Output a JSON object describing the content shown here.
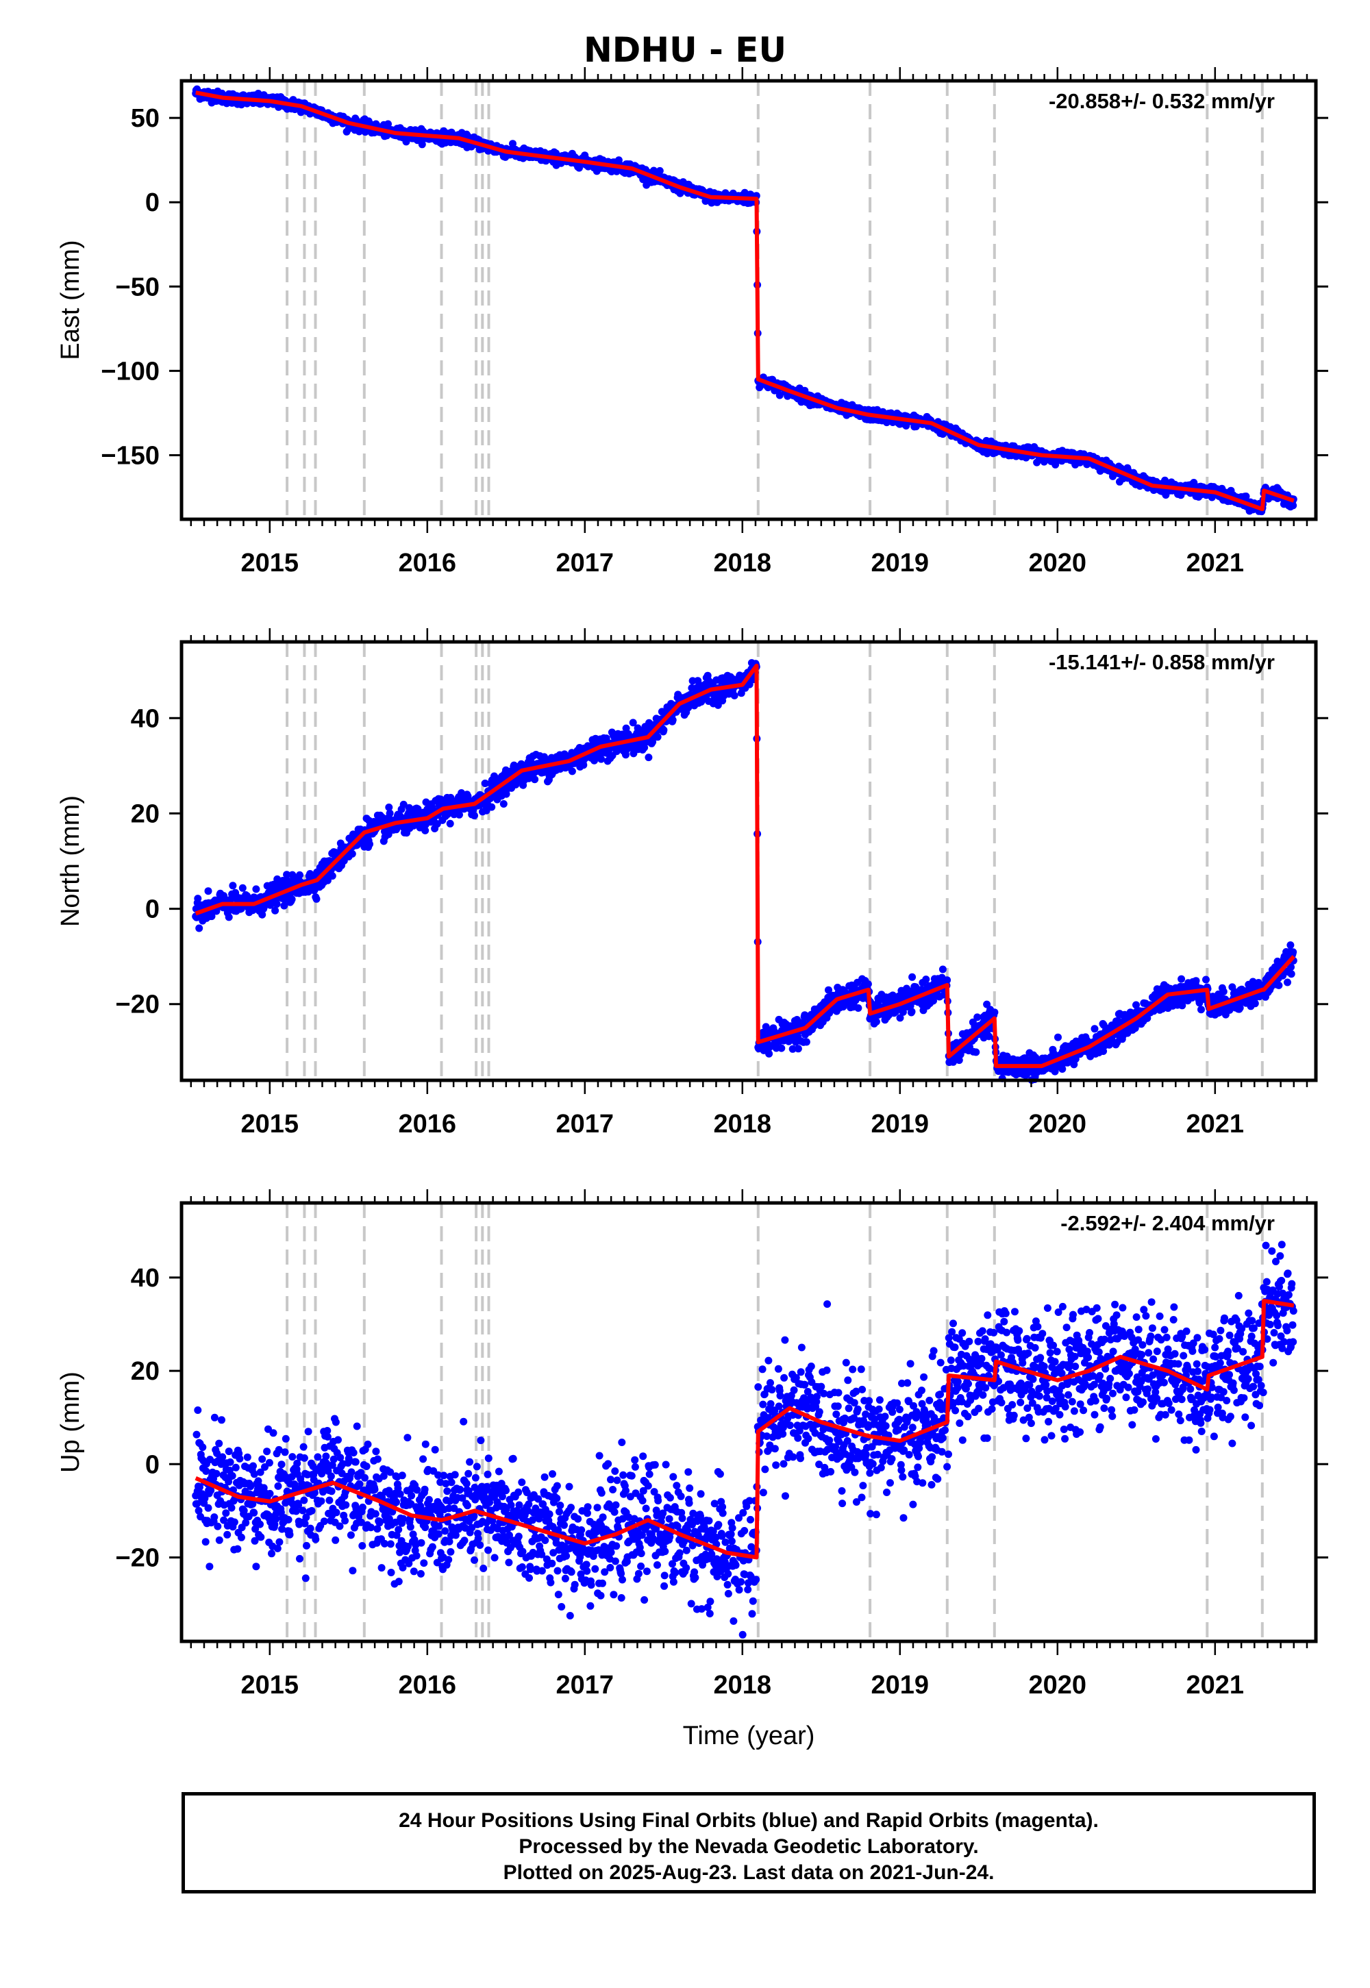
{
  "title": "NDHU - EU",
  "footer": {
    "line1": "24 Hour Positions Using Final Orbits (blue) and Rapid Orbits (magenta).",
    "line2": "Processed by the Nevada Geodetic Laboratory.",
    "line3": "Plotted on 2025-Aug-23. Last data on 2021-Jun-24."
  },
  "colors": {
    "data_points": "#0000ff",
    "model_line": "#ff0000",
    "event_lines": "#c8c8c8",
    "frame": "#000000"
  },
  "chart_data": [
    {
      "type": "scatter",
      "ylabel": "East (mm)",
      "xlabel": "",
      "rate_label": "-20.858+/- 0.532 mm/yr",
      "xlim": [
        2014.44,
        2021.64
      ],
      "ylim": [
        -188,
        72
      ],
      "yticks": [
        50,
        0,
        -50,
        -100,
        -150
      ],
      "xticks": [
        2015,
        2016,
        2017,
        2018,
        2019,
        2020,
        2021
      ],
      "event_lines": [
        2015.11,
        2015.22,
        2015.29,
        2015.6,
        2016.09,
        2016.31,
        2016.35,
        2016.39,
        2018.1,
        2018.81,
        2019.3,
        2019.6,
        2020.95,
        2021.3
      ],
      "model": [
        [
          2014.53,
          65
        ],
        [
          2014.7,
          62
        ],
        [
          2015.0,
          60
        ],
        [
          2015.2,
          57
        ],
        [
          2015.5,
          47
        ],
        [
          2015.8,
          41
        ],
        [
          2016.2,
          38
        ],
        [
          2016.5,
          30
        ],
        [
          2017.0,
          24
        ],
        [
          2017.3,
          20
        ],
        [
          2017.6,
          9
        ],
        [
          2017.8,
          3
        ],
        [
          2018.09,
          2
        ],
        [
          2018.1,
          -105
        ],
        [
          2018.3,
          -112
        ],
        [
          2018.6,
          -122
        ],
        [
          2018.8,
          -126
        ],
        [
          2019.2,
          -131
        ],
        [
          2019.5,
          -144
        ],
        [
          2019.9,
          -150
        ],
        [
          2020.2,
          -152
        ],
        [
          2020.6,
          -168
        ],
        [
          2021.0,
          -172
        ],
        [
          2021.3,
          -182
        ],
        [
          2021.31,
          -171
        ],
        [
          2021.5,
          -177
        ]
      ],
      "points_desc": "daily positions along model with noise ~2 mm"
    },
    {
      "type": "scatter",
      "ylabel": "North (mm)",
      "xlabel": "",
      "rate_label": "-15.141+/- 0.858 mm/yr",
      "xlim": [
        2014.44,
        2021.64
      ],
      "ylim": [
        -36,
        56
      ],
      "yticks": [
        40,
        20,
        0,
        -20
      ],
      "xticks": [
        2015,
        2016,
        2017,
        2018,
        2019,
        2020,
        2021
      ],
      "event_lines": [
        2015.11,
        2015.22,
        2015.29,
        2015.6,
        2016.09,
        2016.31,
        2016.35,
        2016.39,
        2018.1,
        2018.81,
        2019.3,
        2019.6,
        2020.95,
        2021.3
      ],
      "model": [
        [
          2014.53,
          -1
        ],
        [
          2014.7,
          1
        ],
        [
          2014.9,
          1
        ],
        [
          2015.2,
          5
        ],
        [
          2015.3,
          6
        ],
        [
          2015.6,
          16
        ],
        [
          2015.8,
          18
        ],
        [
          2016.0,
          19
        ],
        [
          2016.1,
          21
        ],
        [
          2016.3,
          22
        ],
        [
          2016.6,
          29
        ],
        [
          2016.9,
          31
        ],
        [
          2017.1,
          34
        ],
        [
          2017.4,
          36
        ],
        [
          2017.6,
          43
        ],
        [
          2017.8,
          46
        ],
        [
          2018.0,
          47
        ],
        [
          2018.09,
          51
        ],
        [
          2018.1,
          -28
        ],
        [
          2018.4,
          -25
        ],
        [
          2018.6,
          -19
        ],
        [
          2018.8,
          -17
        ],
        [
          2018.81,
          -22
        ],
        [
          2019.0,
          -20
        ],
        [
          2019.3,
          -16
        ],
        [
          2019.31,
          -31
        ],
        [
          2019.6,
          -23
        ],
        [
          2019.61,
          -33
        ],
        [
          2019.9,
          -33
        ],
        [
          2020.2,
          -29
        ],
        [
          2020.5,
          -23
        ],
        [
          2020.7,
          -18
        ],
        [
          2020.95,
          -17
        ],
        [
          2020.96,
          -21
        ],
        [
          2021.3,
          -17
        ],
        [
          2021.31,
          -17
        ],
        [
          2021.5,
          -10
        ]
      ],
      "points_desc": "daily positions along model with noise ~1.5 mm"
    },
    {
      "type": "scatter",
      "ylabel": "Up (mm)",
      "xlabel": "Time (year)",
      "rate_label": "-2.592+/- 2.404 mm/yr",
      "xlim": [
        2014.44,
        2021.64
      ],
      "ylim": [
        -38,
        56
      ],
      "yticks": [
        40,
        20,
        0,
        -20
      ],
      "xticks": [
        2015,
        2016,
        2017,
        2018,
        2019,
        2020,
        2021
      ],
      "event_lines": [
        2015.11,
        2015.22,
        2015.29,
        2015.6,
        2016.09,
        2016.31,
        2016.35,
        2016.39,
        2018.1,
        2018.81,
        2019.3,
        2019.6,
        2020.95,
        2021.3
      ],
      "model": [
        [
          2014.53,
          -3
        ],
        [
          2014.8,
          -7
        ],
        [
          2015.0,
          -8
        ],
        [
          2015.2,
          -6
        ],
        [
          2015.4,
          -4
        ],
        [
          2015.7,
          -8
        ],
        [
          2015.9,
          -11
        ],
        [
          2016.09,
          -12
        ],
        [
          2016.2,
          -11
        ],
        [
          2016.3,
          -10
        ],
        [
          2016.6,
          -13
        ],
        [
          2016.9,
          -16
        ],
        [
          2017.0,
          -17
        ],
        [
          2017.2,
          -15
        ],
        [
          2017.4,
          -12
        ],
        [
          2017.6,
          -15
        ],
        [
          2017.9,
          -19
        ],
        [
          2018.09,
          -20
        ],
        [
          2018.1,
          7
        ],
        [
          2018.3,
          12
        ],
        [
          2018.5,
          9
        ],
        [
          2018.8,
          6
        ],
        [
          2019.0,
          5
        ],
        [
          2019.3,
          9
        ],
        [
          2019.31,
          19
        ],
        [
          2019.6,
          18
        ],
        [
          2019.61,
          22
        ],
        [
          2019.8,
          20
        ],
        [
          2020.0,
          18
        ],
        [
          2020.2,
          20
        ],
        [
          2020.4,
          23
        ],
        [
          2020.7,
          20
        ],
        [
          2020.95,
          16
        ],
        [
          2020.96,
          19
        ],
        [
          2021.3,
          23
        ],
        [
          2021.31,
          35
        ],
        [
          2021.5,
          34
        ]
      ],
      "points_desc": "daily positions along model with noise ~6 mm"
    }
  ]
}
